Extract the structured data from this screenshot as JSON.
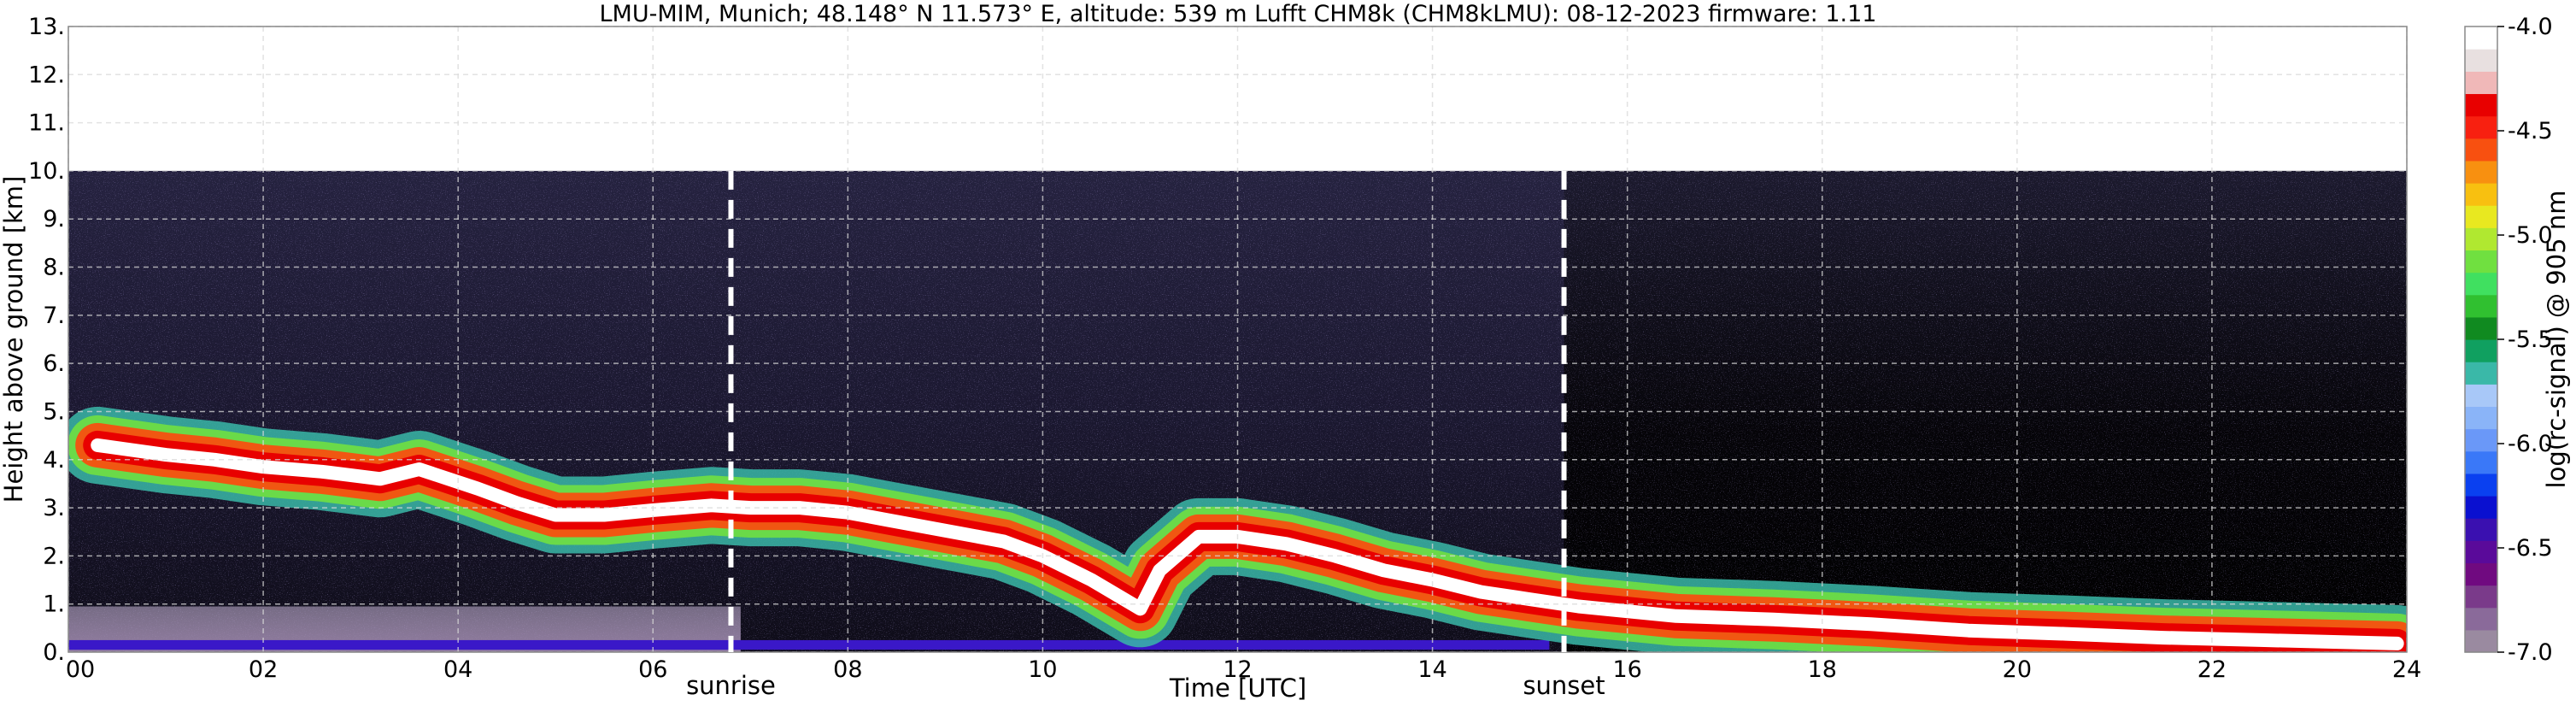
{
  "chart_data": {
    "type": "heatmap",
    "title": "LMU-MIM, Munich; 48.148° N 11.573° E, altitude: 539 m    Lufft CHM8k (CHM8kLMU): 08-12-2023    firmware: 1.11",
    "xlabel": "Time [UTC]",
    "ylabel": "Height above ground [km]",
    "xlim": [
      0,
      24
    ],
    "ylim": [
      0,
      13
    ],
    "x_tick_labels": [
      "00",
      "02",
      "04",
      "06",
      "08",
      "10",
      "12",
      "14",
      "16",
      "18",
      "20",
      "22",
      "24"
    ],
    "y_tick_labels": [
      "0.",
      "1.",
      "2.",
      "3.",
      "4.",
      "5.",
      "6.",
      "7.",
      "8.",
      "9.",
      "10.",
      "11.",
      "12.",
      "13."
    ],
    "grid": true,
    "data_top_km": 10.0,
    "colorbar": {
      "label": "log(rc-signal) @ 905 nm",
      "range": [
        -7.0,
        -4.0
      ],
      "tick_labels": [
        "-7.0",
        "-6.5",
        "-6.0",
        "-5.5",
        "-5.0",
        "-4.5",
        "-4.0"
      ],
      "colors": [
        "#9a8aa0",
        "#8a6a9a",
        "#7a3a8a",
        "#700a80",
        "#5a0a9a",
        "#3a10b0",
        "#0a10d0",
        "#0a40f0",
        "#3a78f8",
        "#6a98f8",
        "#8ab4f8",
        "#a8c8f8",
        "#3ab8a8",
        "#10a060",
        "#108a20",
        "#30c030",
        "#40e060",
        "#70e040",
        "#b0e830",
        "#e8e820",
        "#f8c010",
        "#f89010",
        "#f85010",
        "#f82010",
        "#e80000",
        "#f0b8b8",
        "#e8e0e0",
        "#ffffff"
      ]
    },
    "annotations": [
      {
        "text": "sunrise",
        "x": 6.8
      },
      {
        "text": "sunset",
        "x": 15.35
      }
    ],
    "cloud_layers": [
      {
        "name": "",
        "points": [
          [
            0.3,
            4.3
          ],
          [
            1.0,
            4.1
          ],
          [
            1.5,
            4.0
          ],
          [
            2.0,
            3.85
          ],
          [
            2.6,
            3.75
          ],
          [
            3.2,
            3.6
          ],
          [
            3.6,
            3.8
          ],
          [
            4.2,
            3.4
          ],
          [
            4.6,
            3.1
          ],
          [
            5.0,
            2.85
          ],
          [
            5.5,
            2.85
          ],
          [
            6.0,
            2.95
          ],
          [
            6.6,
            3.05
          ],
          [
            7.0,
            3.0
          ],
          [
            7.5,
            3.0
          ],
          [
            8.0,
            2.9
          ],
          [
            8.4,
            2.75
          ],
          [
            8.8,
            2.6
          ],
          [
            9.2,
            2.45
          ],
          [
            9.6,
            2.3
          ],
          [
            10.0,
            2.0
          ],
          [
            10.5,
            1.5
          ],
          [
            11.0,
            0.9
          ],
          [
            11.2,
            1.7
          ],
          [
            11.6,
            2.4
          ],
          [
            12.0,
            2.4
          ],
          [
            12.5,
            2.25
          ],
          [
            13.0,
            2.0
          ],
          [
            13.5,
            1.7
          ],
          [
            14.0,
            1.5
          ],
          [
            14.5,
            1.25
          ],
          [
            15.0,
            1.1
          ],
          [
            15.5,
            0.95
          ],
          [
            16.5,
            0.75
          ],
          [
            17.5,
            0.68
          ],
          [
            18.5,
            0.58
          ],
          [
            19.5,
            0.45
          ],
          [
            20.5,
            0.38
          ],
          [
            21.5,
            0.3
          ],
          [
            22.5,
            0.25
          ],
          [
            23.9,
            0.18
          ]
        ]
      }
    ]
  }
}
